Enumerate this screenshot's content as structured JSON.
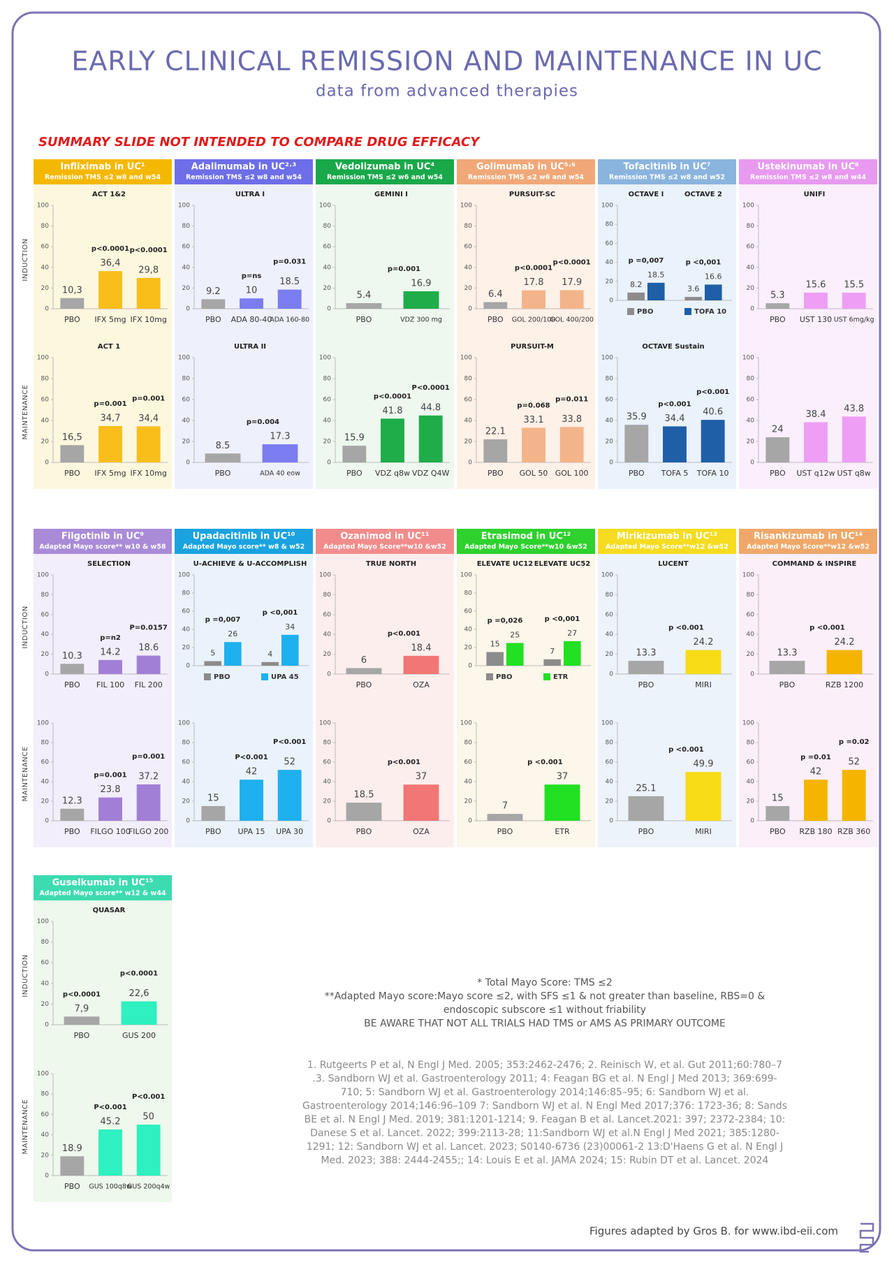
{
  "header": {
    "title": "EARLY CLINICAL REMISSION AND MAINTENANCE IN UC",
    "subtitle": "data from advanced therapies",
    "warning": "SUMMARY SLIDE NOT INTENDED TO COMPARE DRUG EFFICACY"
  },
  "axis": {
    "ylim": [
      0,
      100
    ],
    "yticks": [
      0,
      20,
      40,
      60,
      80,
      100
    ]
  },
  "row_labels": [
    "INDUCTION",
    "MAINTENANCE"
  ],
  "rows": [
    [
      {
        "name": "Infliximab in UC¹",
        "endpoint": "Remission TMS ≤2 w8 and w54",
        "header_color": "#f5b800",
        "bg": "#fdf7de",
        "induction": {
          "type": "bar",
          "title": "ACT 1&2",
          "categories": [
            "PBO",
            "IFX 5mg",
            "IFX 10mg"
          ],
          "values": [
            10.3,
            36.4,
            29.8
          ],
          "value_labels": [
            "10,3",
            "36,4",
            "29,8"
          ],
          "colors": [
            "#a6a6a6",
            "#f9be19",
            "#f9be19"
          ],
          "annotations": [
            "p<0.0001",
            "p<0.0001"
          ]
        },
        "maintenance": {
          "type": "bar",
          "title": "ACT 1",
          "categories": [
            "PBO",
            "IFX 5mg",
            "IFX 10mg"
          ],
          "values": [
            16.5,
            34.7,
            34.4
          ],
          "value_labels": [
            "16,5",
            "34,7",
            "34,4"
          ],
          "colors": [
            "#a6a6a6",
            "#f9be19",
            "#f9be19"
          ],
          "annotations": [
            "p=0.001",
            "p=0.001"
          ]
        }
      },
      {
        "name": "Adalimumab in UC²˒³",
        "endpoint": "Remission TMS ≤2 w8 and w54",
        "header_color": "#6d6ee8",
        "bg": "#eef0fb",
        "induction": {
          "type": "bar",
          "title": "ULTRA I",
          "categories": [
            "PBO",
            "ADA 80-40",
            "ADA 160-80"
          ],
          "values": [
            9.2,
            10,
            18.5
          ],
          "colors": [
            "#a6a6a6",
            "#7b7df0",
            "#7b7df0"
          ],
          "annotations": [
            "p=ns",
            "p=0.031"
          ]
        },
        "maintenance": {
          "type": "bar",
          "title": "ULTRA II",
          "categories": [
            "PBO",
            "ADA 40 eow"
          ],
          "values": [
            8.5,
            17.3
          ],
          "colors": [
            "#a6a6a6",
            "#7b7df0"
          ],
          "annotations": [
            "p=0.004"
          ]
        }
      },
      {
        "name": "Vedolizumab in UC⁴",
        "endpoint": "Remission TMS ≤2 w6 and w54",
        "header_color": "#19a84a",
        "bg": "#eef8ef",
        "induction": {
          "type": "bar",
          "title": "GEMINI I",
          "categories": [
            "PBO",
            "VDZ 300 mg"
          ],
          "values": [
            5.4,
            16.9
          ],
          "colors": [
            "#a6a6a6",
            "#1fad4a"
          ],
          "annotations": [
            "p=0.001"
          ]
        },
        "maintenance": {
          "type": "bar",
          "categories": [
            "PBO",
            "VDZ q8w",
            "VDZ Q4W"
          ],
          "values": [
            15.9,
            41.8,
            44.8
          ],
          "colors": [
            "#a6a6a6",
            "#1fad4a",
            "#1fad4a"
          ],
          "annotations": [
            "p<0.0001",
            "P<0.0001"
          ]
        }
      },
      {
        "name": "Golimumab in UC⁵˒⁶",
        "endpoint": "Remission TMS ≤2 w6 and w54",
        "header_color": "#f0a878",
        "bg": "#fdf1e8",
        "induction": {
          "type": "bar",
          "title": "PURSUIT-SC",
          "categories": [
            "PBO",
            "GOL 200/100",
            "GOL 400/200"
          ],
          "values": [
            6.4,
            17.8,
            17.9
          ],
          "colors": [
            "#a6a6a6",
            "#f4b48a",
            "#f4b48a"
          ],
          "annotations": [
            "p<0.0001",
            "p<0.0001"
          ]
        },
        "maintenance": {
          "type": "bar",
          "title": "PURSUIT-M",
          "categories": [
            "PBO",
            "GOL 50",
            "GOL 100"
          ],
          "values": [
            22.1,
            33.1,
            33.8
          ],
          "colors": [
            "#a6a6a6",
            "#f4b48a",
            "#f4b48a"
          ],
          "annotations": [
            "p=0.068",
            "p=0.011"
          ]
        }
      },
      {
        "name": "Tofacitinib in UC⁷",
        "endpoint": "Remission TMS ≤2 w8 and w52",
        "header_color": "#8ab4de",
        "bg": "#eaf2fb",
        "induction": {
          "type": "grouped_bar",
          "categories": [
            "OCTAVE I",
            "OCTAVE 2"
          ],
          "series": [
            {
              "name": "PBO",
              "color": "#8c8c8c",
              "values": [
                8.2,
                3.6
              ]
            },
            {
              "name": "TOFA 10",
              "color": "#1f5fa8",
              "values": [
                18.5,
                16.6
              ]
            }
          ],
          "annotations": [
            "p =0,007",
            "p <0,001"
          ]
        },
        "maintenance": {
          "type": "bar",
          "title": "OCTAVE Sustain",
          "categories": [
            "PBO",
            "TOFA 5",
            "TOFA 10"
          ],
          "values": [
            35.9,
            34.4,
            40.6
          ],
          "colors": [
            "#a6a6a6",
            "#1f5fa8",
            "#1f5fa8"
          ],
          "annotations": [
            "p<0.001",
            "p<0.001"
          ]
        }
      },
      {
        "name": "Ustekinumab in UC⁸",
        "endpoint": "Remission TMS ≤2 w8 and w44",
        "header_color": "#e79af0",
        "bg": "#fbeffd",
        "induction": {
          "type": "bar",
          "title": "UNIFI",
          "categories": [
            "PBO",
            "UST 130",
            "UST 6mg/kg"
          ],
          "values": [
            5.3,
            15.6,
            15.5
          ],
          "colors": [
            "#a6a6a6",
            "#ee9ff5",
            "#ee9ff5"
          ],
          "annotations": []
        },
        "maintenance": {
          "type": "bar",
          "categories": [
            "PBO",
            "UST q12w",
            "UST q8w"
          ],
          "values": [
            24,
            38.4,
            43.8
          ],
          "colors": [
            "#a6a6a6",
            "#ee9ff5",
            "#ee9ff5"
          ],
          "annotations": []
        }
      }
    ],
    [
      {
        "name": "Filgotinib in UC⁹",
        "endpoint": "Adapted Mayo score** w10 & w58",
        "header_color": "#a98bd8",
        "bg": "#f3eefb",
        "induction": {
          "type": "bar",
          "title": "SELECTION",
          "categories": [
            "PBO",
            "FIL 100",
            "FIL 200"
          ],
          "values": [
            10.3,
            14.2,
            18.6
          ],
          "colors": [
            "#a6a6a6",
            "#a27fd6",
            "#a27fd6"
          ],
          "annotations": [
            "p=n2",
            "P=0.0157"
          ]
        },
        "maintenance": {
          "type": "bar",
          "categories": [
            "PBO",
            "FILGO 100",
            "FILGO 200"
          ],
          "values": [
            12.3,
            23.8,
            37.2
          ],
          "colors": [
            "#a6a6a6",
            "#a27fd6",
            "#a27fd6"
          ],
          "annotations": [
            "p=0.001",
            "p=0.001"
          ]
        }
      },
      {
        "name": "Upadacitinib in UC¹⁰",
        "endpoint": "Adapted Mayo score** w8 & w52",
        "header_color": "#1aa3e0",
        "bg": "#eaf3fb",
        "induction": {
          "type": "grouped_bar",
          "title": "U-ACHIEVE & U-ACCOMPLISH",
          "categories": [
            null,
            null
          ],
          "series": [
            {
              "name": "PBO",
              "color": "#8c8c8c",
              "values": [
                5,
                4
              ]
            },
            {
              "name": "UPA 45",
              "color": "#1eb0ef",
              "values": [
                26,
                34
              ]
            }
          ],
          "annotations": [
            "p =0,007",
            "p <0,001"
          ]
        },
        "maintenance": {
          "type": "bar",
          "categories": [
            "PBO",
            "UPA 15",
            "UPA 30"
          ],
          "values": [
            15,
            42,
            52
          ],
          "colors": [
            "#a6a6a6",
            "#1eb0ef",
            "#1eb0ef"
          ],
          "annotations": [
            "P<0.001",
            "P<0.001"
          ]
        }
      },
      {
        "name": "Ozanimod in UC¹¹",
        "endpoint": "Adapted Mayo Score**w10 &w52",
        "header_color": "#f28c8c",
        "bg": "#fdeeee",
        "induction": {
          "type": "bar",
          "title": "TRUE NORTH",
          "categories": [
            "PBO",
            "OZA"
          ],
          "values": [
            6,
            18.4
          ],
          "colors": [
            "#a6a6a6",
            "#f27676"
          ],
          "annotations": [
            "p<0.001"
          ]
        },
        "maintenance": {
          "type": "bar",
          "categories": [
            "PBO",
            "OZA"
          ],
          "values": [
            18.5,
            37
          ],
          "colors": [
            "#a6a6a6",
            "#f27676"
          ],
          "annotations": [
            "p<0.001"
          ]
        }
      },
      {
        "name": "Etrasimod in UC¹²",
        "endpoint": "Adapted Mayo Score**w10 &w52",
        "header_color": "#2ed12e",
        "bg": "#fdf6ea",
        "induction": {
          "type": "grouped_bar",
          "categories": [
            "ELEVATE UC12",
            "ELEVATE UC52"
          ],
          "series": [
            {
              "name": "PBO",
              "color": "#8c8c8c",
              "values": [
                15,
                7
              ]
            },
            {
              "name": "ETR",
              "color": "#22e022",
              "values": [
                25,
                27
              ]
            }
          ],
          "annotations": [
            "p =0,026",
            "p <0,001"
          ]
        },
        "maintenance": {
          "type": "bar",
          "categories": [
            "PBO",
            "ETR"
          ],
          "values": [
            7,
            37
          ],
          "colors": [
            "#a6a6a6",
            "#22e022"
          ],
          "annotations": [
            "p <0.001"
          ]
        }
      },
      {
        "name": "Mirikizumab in UC¹³",
        "endpoint": "Adapted Mayo Score**w12 &w52",
        "header_color": "#f5dc20",
        "bg": "#edf3fb",
        "induction": {
          "type": "bar",
          "title": "LUCENT",
          "categories": [
            "PBO",
            "MIRI"
          ],
          "values": [
            13.3,
            24.2
          ],
          "colors": [
            "#a6a6a6",
            "#f7dc16"
          ],
          "annotations": [
            "p <0.001"
          ]
        },
        "maintenance": {
          "type": "bar",
          "categories": [
            "PBO",
            "MIRI"
          ],
          "values": [
            25.1,
            49.9
          ],
          "colors": [
            "#a6a6a6",
            "#f7dc16"
          ],
          "annotations": [
            "p <0.001"
          ]
        }
      },
      {
        "name": "Risankizumab in UC¹⁴",
        "endpoint": "Adapted Mayo Score**w12 &w52",
        "header_color": "#f0a86a",
        "bg": "#fbeffa",
        "induction": {
          "type": "bar",
          "title": "COMMAND & INSPIRE",
          "categories": [
            "PBO",
            "RZB 1200"
          ],
          "values": [
            13.3,
            24.2
          ],
          "colors": [
            "#a6a6a6",
            "#f5b400"
          ],
          "annotations": [
            "p <0.001"
          ]
        },
        "maintenance": {
          "type": "bar",
          "categories": [
            "PBO",
            "RZB 180",
            "RZB 360"
          ],
          "values": [
            15,
            42,
            52
          ],
          "colors": [
            "#a6a6a6",
            "#f5b400",
            "#f5b400"
          ],
          "annotations": [
            "p =0.01",
            "p =0.02"
          ]
        }
      }
    ],
    [
      {
        "name": "Guselkumab in UC¹⁵",
        "endpoint": "Adapted Mayo score** w12 & w44",
        "header_color": "#3ddbb0",
        "bg": "#eef8ec",
        "induction": {
          "type": "bar",
          "title": "QUASAR",
          "categories": [
            "PBO",
            "GUS 200"
          ],
          "values": [
            7.9,
            22.6
          ],
          "value_labels": [
            "7,9",
            "22,6"
          ],
          "colors": [
            "#a6a6a6",
            "#2ef0c0"
          ],
          "annotations": [
            "p<0.0001",
            "p<0.0001"
          ]
        },
        "maintenance": {
          "type": "bar",
          "categories": [
            "PBO",
            "GUS 100q8w",
            "GUS 200q4w"
          ],
          "values": [
            18.9,
            45.2,
            50
          ],
          "colors": [
            "#a6a6a6",
            "#2ef0c0",
            "#2ef0c0"
          ],
          "annotations": [
            "P<0.001",
            "P<0.001"
          ]
        }
      }
    ]
  ],
  "footnotes": [
    "* Total Mayo Score: TMS ≤2",
    "**Adapted Mayo score:Mayo score ≤2, with SFS ≤1 & not greater than baseline, RBS=0 &",
    "endoscopic subscore ≤1 without friability",
    "BE AWARE THAT NOT ALL TRIALS HAD TMS or AMS AS PRIMARY OUTCOME"
  ],
  "references": [
    "1. Rutgeerts P et al, N Engl J Med. 2005; 353:2462-2476; 2. Reinisch W, et al. Gut 2011;60:780–7",
    ".3. Sandborn WJ et al. Gastroenterology 2011; 4: Feagan BG et al. N Engl J Med 2013; 369:699-",
    "710; 5: Sandborn WJ et al. Gastroenterology 2014;146:85–95; 6: Sandborn WJ et al.",
    "Gastroenterology 2014;146:96–109 7: Sandborn WJ et al. N Engl Med 2017;376: 1723-36; 8: Sands",
    "BE et al. N Engl J Med. 2019; 381:1201-1214; 9. Feagan B et al. Lancet.2021: 397; 2372-2384; 10:",
    "Danese S et al. Lancet. 2022; 399:2113-28; 11:Sandborn WJ et al.N Engl J Med 2021; 385:1280-",
    "1291; 12: Sandborn WJ et al. Lancet. 2023; S0140-6736 (23)00061-2  13:D'Haens G et al. N Engl J",
    "Med. 2023; 388: 2444-2455;; 14: Louis E et al. JAMA 2024; 15: Rubin DT et al. Lancet. 2024"
  ],
  "credit": "Figures adapted by Gros B. for www.ibd-eii.com"
}
